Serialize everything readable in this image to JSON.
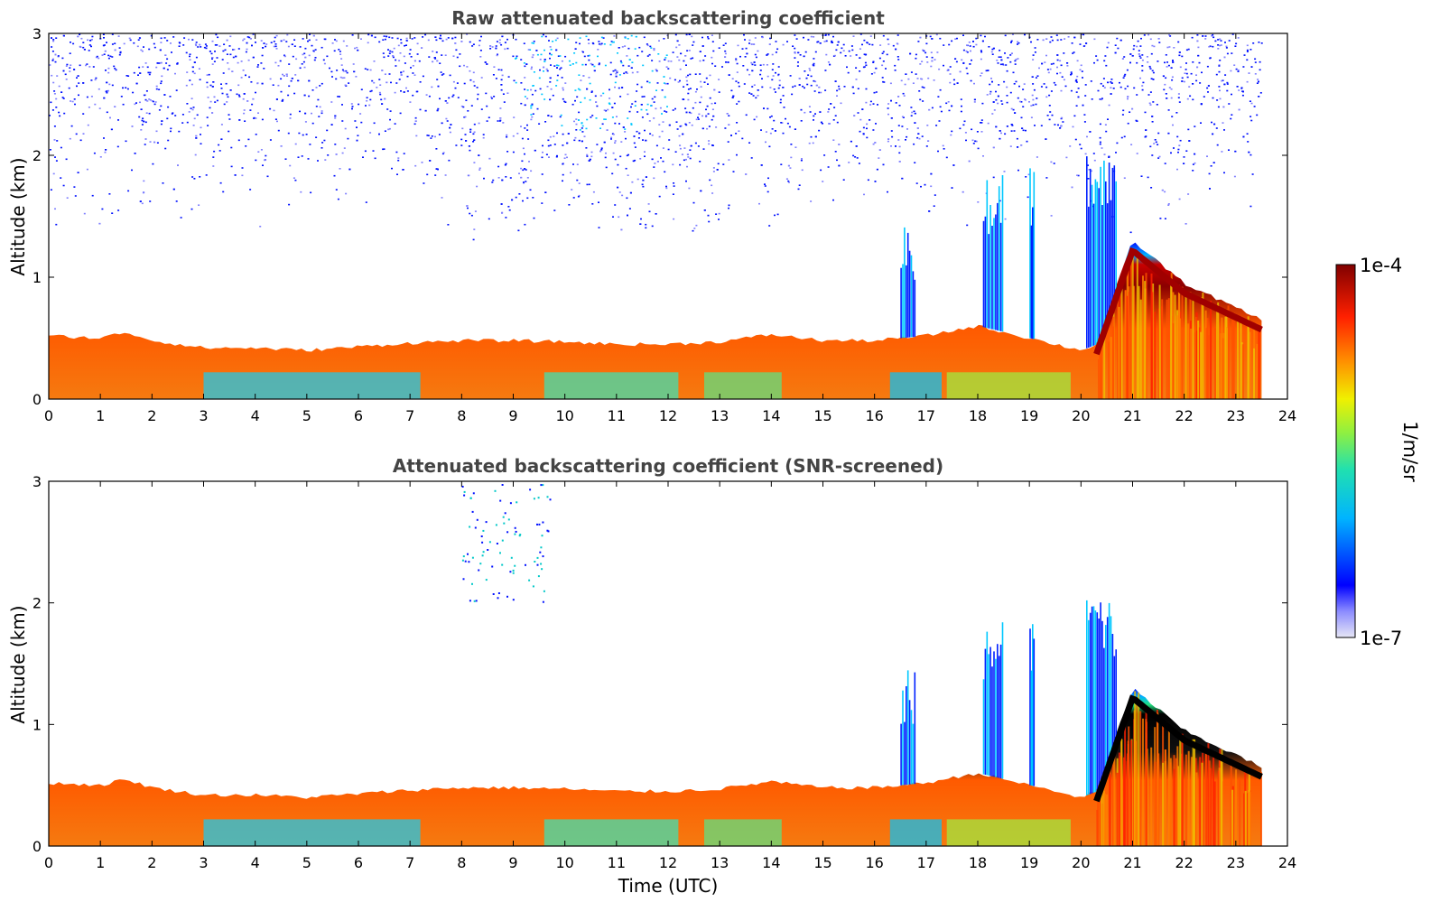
{
  "chart_data": [
    {
      "type": "heatmap",
      "title": "Raw attenuated backscattering coefficient",
      "xlabel": "",
      "ylabel": "Altitude (km)",
      "xlim": [
        0,
        24
      ],
      "ylim": [
        0,
        3
      ],
      "xticks": [
        "0",
        "1",
        "2",
        "3",
        "4",
        "5",
        "6",
        "7",
        "8",
        "9",
        "10",
        "11",
        "12",
        "13",
        "14",
        "15",
        "16",
        "17",
        "18",
        "19",
        "20",
        "21",
        "22",
        "23",
        "24"
      ],
      "yticks": [
        "0",
        "1",
        "2",
        "3"
      ],
      "data_end_time": 23.5,
      "noise": "dense blue noise above about 1.5 km, strongest between 8 and 13 UTC and above 2 km",
      "boundary_layer_top_km": {
        "time": [
          0,
          1,
          1.5,
          2,
          3,
          4,
          5,
          6,
          7,
          8,
          9,
          10,
          11,
          12,
          13,
          14,
          15,
          16,
          17,
          18,
          19,
          20,
          20.3,
          21,
          22,
          23,
          23.5
        ],
        "top": [
          0.52,
          0.5,
          0.55,
          0.48,
          0.42,
          0.42,
          0.4,
          0.43,
          0.46,
          0.48,
          0.48,
          0.47,
          0.45,
          0.45,
          0.47,
          0.53,
          0.48,
          0.48,
          0.52,
          0.6,
          0.5,
          0.4,
          0.45,
          1.3,
          0.95,
          0.75,
          0.65
        ]
      },
      "cloud_features": [
        {
          "t_start": 16.5,
          "t_end": 16.8,
          "z_top_km": 1.45
        },
        {
          "t_start": 18.1,
          "t_end": 18.5,
          "z_top_km": 1.85
        },
        {
          "t_start": 19.0,
          "t_end": 19.1,
          "z_top_km": 1.9
        },
        {
          "t_start": 20.1,
          "t_end": 20.7,
          "z_top_km": 2.05
        }
      ]
    },
    {
      "type": "heatmap",
      "title": "Attenuated backscattering coefficient (SNR-screened)",
      "xlabel": "Time (UTC)",
      "ylabel": "Altitude (km)",
      "xlim": [
        0,
        24
      ],
      "ylim": [
        0,
        3
      ],
      "xticks": [
        "0",
        "1",
        "2",
        "3",
        "4",
        "5",
        "6",
        "7",
        "8",
        "9",
        "10",
        "11",
        "12",
        "13",
        "14",
        "15",
        "16",
        "17",
        "18",
        "19",
        "20",
        "21",
        "22",
        "23",
        "24"
      ],
      "yticks": [
        "0",
        "1",
        "2",
        "3"
      ],
      "data_end_time": 23.5,
      "noise": "screened out; only sparse specks near 9-9.5 UTC above 2 km"
    }
  ],
  "colorbar": {
    "label": "1/m/sr",
    "min_label": "1e-7",
    "max_label": "1e-4",
    "scale": "log",
    "colormap": "jet",
    "colors": [
      "#e6e6f5",
      "#0000ff",
      "#00c8ff",
      "#20e0a0",
      "#e6f000",
      "#ff8000",
      "#dc0000",
      "#800000"
    ]
  }
}
